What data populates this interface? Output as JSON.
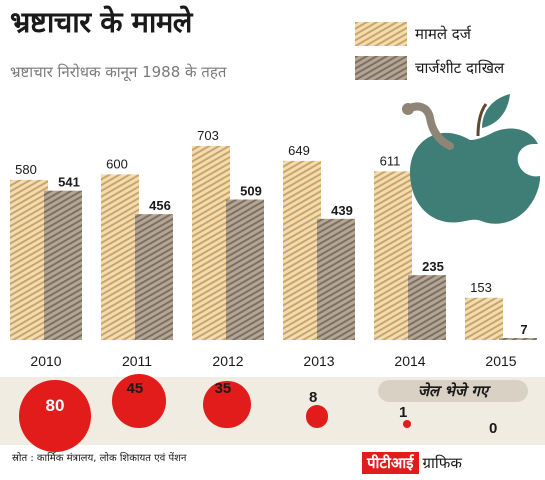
{
  "header": {
    "title": "भ्रष्टाचार के मामले",
    "subtitle": "भ्रष्टाचार निरोधक कानून 1988 के तहत"
  },
  "legend": {
    "cases": "मामले दर्ज",
    "chargesheets": "चार्जशीट दाखिल"
  },
  "colors": {
    "cases_stripe_a": "#f3dcb0",
    "cases_stripe_b": "#c9a56c",
    "charge_stripe_a": "#b3a695",
    "charge_stripe_b": "#7e7060",
    "jail_circle": "#e21b1b",
    "apple": "#3f7e76"
  },
  "chart_data": {
    "type": "bar",
    "title": "भ्रष्टाचार के मामले",
    "subtitle": "भ्रष्टाचार निरोधक कानून 1988 के तहत",
    "categories": [
      "2010",
      "2011",
      "2012",
      "2013",
      "2014",
      "2015"
    ],
    "series": [
      {
        "name": "मामले दर्ज",
        "values": [
          580,
          600,
          703,
          649,
          611,
          153
        ]
      },
      {
        "name": "चार्जशीट दाखिल",
        "values": [
          541,
          456,
          509,
          439,
          235,
          7
        ]
      }
    ],
    "ylim": [
      0,
      760
    ],
    "grid": false,
    "legend_position": "top-right"
  },
  "jail": {
    "title": "जेल भेजे गए",
    "values": [
      "80",
      "45",
      "35",
      "8",
      "1",
      "0"
    ]
  },
  "footer": {
    "source": "स्रोत : कार्मिक मंत्रालय, लोक शिकायत एवं पेंशन",
    "credit_brand": "पीटीआई",
    "credit_suffix": "ग्राफिक"
  }
}
